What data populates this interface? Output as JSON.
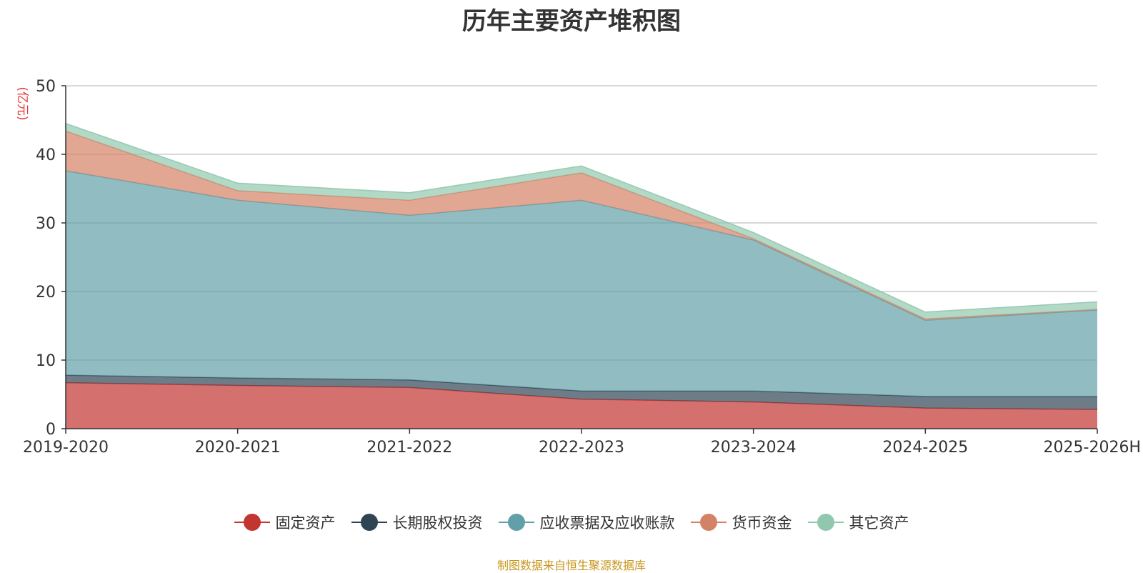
{
  "chart_data": {
    "type": "area",
    "stacked": true,
    "title": "历年主要资产堆积图",
    "ylabel": "(亿元)",
    "ylim": [
      0,
      50
    ],
    "yticks": [
      0,
      10,
      20,
      30,
      40,
      50
    ],
    "grid": true,
    "legend_position": "bottom",
    "categories": [
      "2019-2020",
      "2020-2021",
      "2021-2022",
      "2022-2023",
      "2023-2024",
      "2024-2025",
      "2025-2026H"
    ],
    "series": [
      {
        "name": "固定资产",
        "color": "#c23531",
        "values": [
          6.7,
          6.3,
          6.0,
          4.3,
          3.9,
          3.0,
          2.8
        ]
      },
      {
        "name": "长期股权投资",
        "color": "#2f4554",
        "values": [
          1.1,
          1.1,
          1.1,
          1.2,
          1.6,
          1.7,
          1.9
        ]
      },
      {
        "name": "应收票据及应收账款",
        "color": "#61a0a8",
        "values": [
          29.8,
          25.9,
          24.0,
          27.8,
          22.0,
          11.1,
          12.6
        ]
      },
      {
        "name": "货币资金",
        "color": "#d48265",
        "values": [
          5.8,
          1.4,
          2.2,
          4.0,
          0.2,
          0.2,
          0.1
        ]
      },
      {
        "name": "其它资产",
        "color": "#91c7ae",
        "values": [
          1.1,
          1.1,
          1.1,
          1.0,
          0.9,
          1.0,
          1.1
        ]
      }
    ]
  },
  "source_note": "制图数据来自恒生聚源数据库"
}
